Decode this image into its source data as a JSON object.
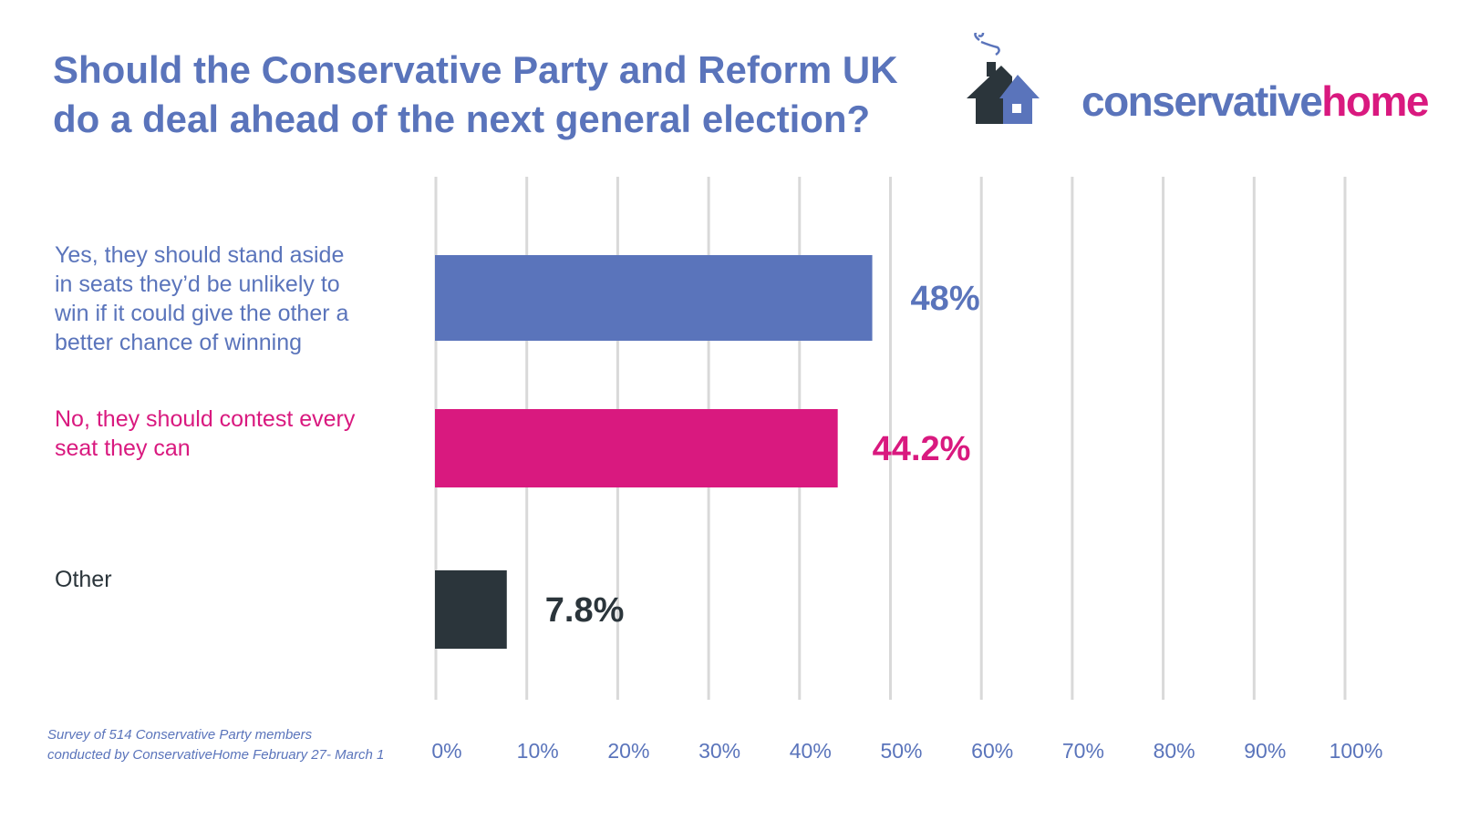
{
  "title_line1": "Should the Conservative Party and Reform UK",
  "title_line2": "do a deal ahead of the next general election?",
  "logo": {
    "text_part1": "conservative",
    "text_part2": "home",
    "icon": "house-icon"
  },
  "footnote_line1": "Survey of 514 Conservative Party members",
  "footnote_line2": "conducted by ConservativeHome February 27- March 1",
  "colors": {
    "blue": "#5a74bb",
    "pink": "#d9197f",
    "dark": "#2b353b",
    "grid": "#d9d9d9"
  },
  "chart_data": {
    "type": "bar",
    "orientation": "horizontal",
    "title": "Should the Conservative Party and Reform UK do a deal ahead of the next general election?",
    "categories": [
      "Yes, they should stand aside in seats they'd be unlikely to win if it could give the other a better chance of winning",
      "No, they should contest every seat they can",
      "Other"
    ],
    "category_lines": [
      [
        "Yes, they should stand aside",
        "in seats they’d be unlikely to",
        "win if it could give the other a",
        "better chance of winning"
      ],
      [
        "No, they should contest every",
        "seat they can"
      ],
      [
        "Other"
      ]
    ],
    "values": [
      48,
      44.2,
      7.8
    ],
    "value_labels": [
      "48%",
      "44.2%",
      "7.8%"
    ],
    "bar_colors": [
      "#5a74bb",
      "#d9197f",
      "#2b353b"
    ],
    "xlim": [
      0,
      100
    ],
    "xticks": [
      0,
      10,
      20,
      30,
      40,
      50,
      60,
      70,
      80,
      90,
      100
    ],
    "xtick_labels": [
      "0%",
      "10%",
      "20%",
      "30%",
      "40%",
      "50%",
      "60%",
      "70%",
      "80%",
      "90%",
      "100%"
    ],
    "grid": true,
    "xlabel": "",
    "ylabel": ""
  }
}
